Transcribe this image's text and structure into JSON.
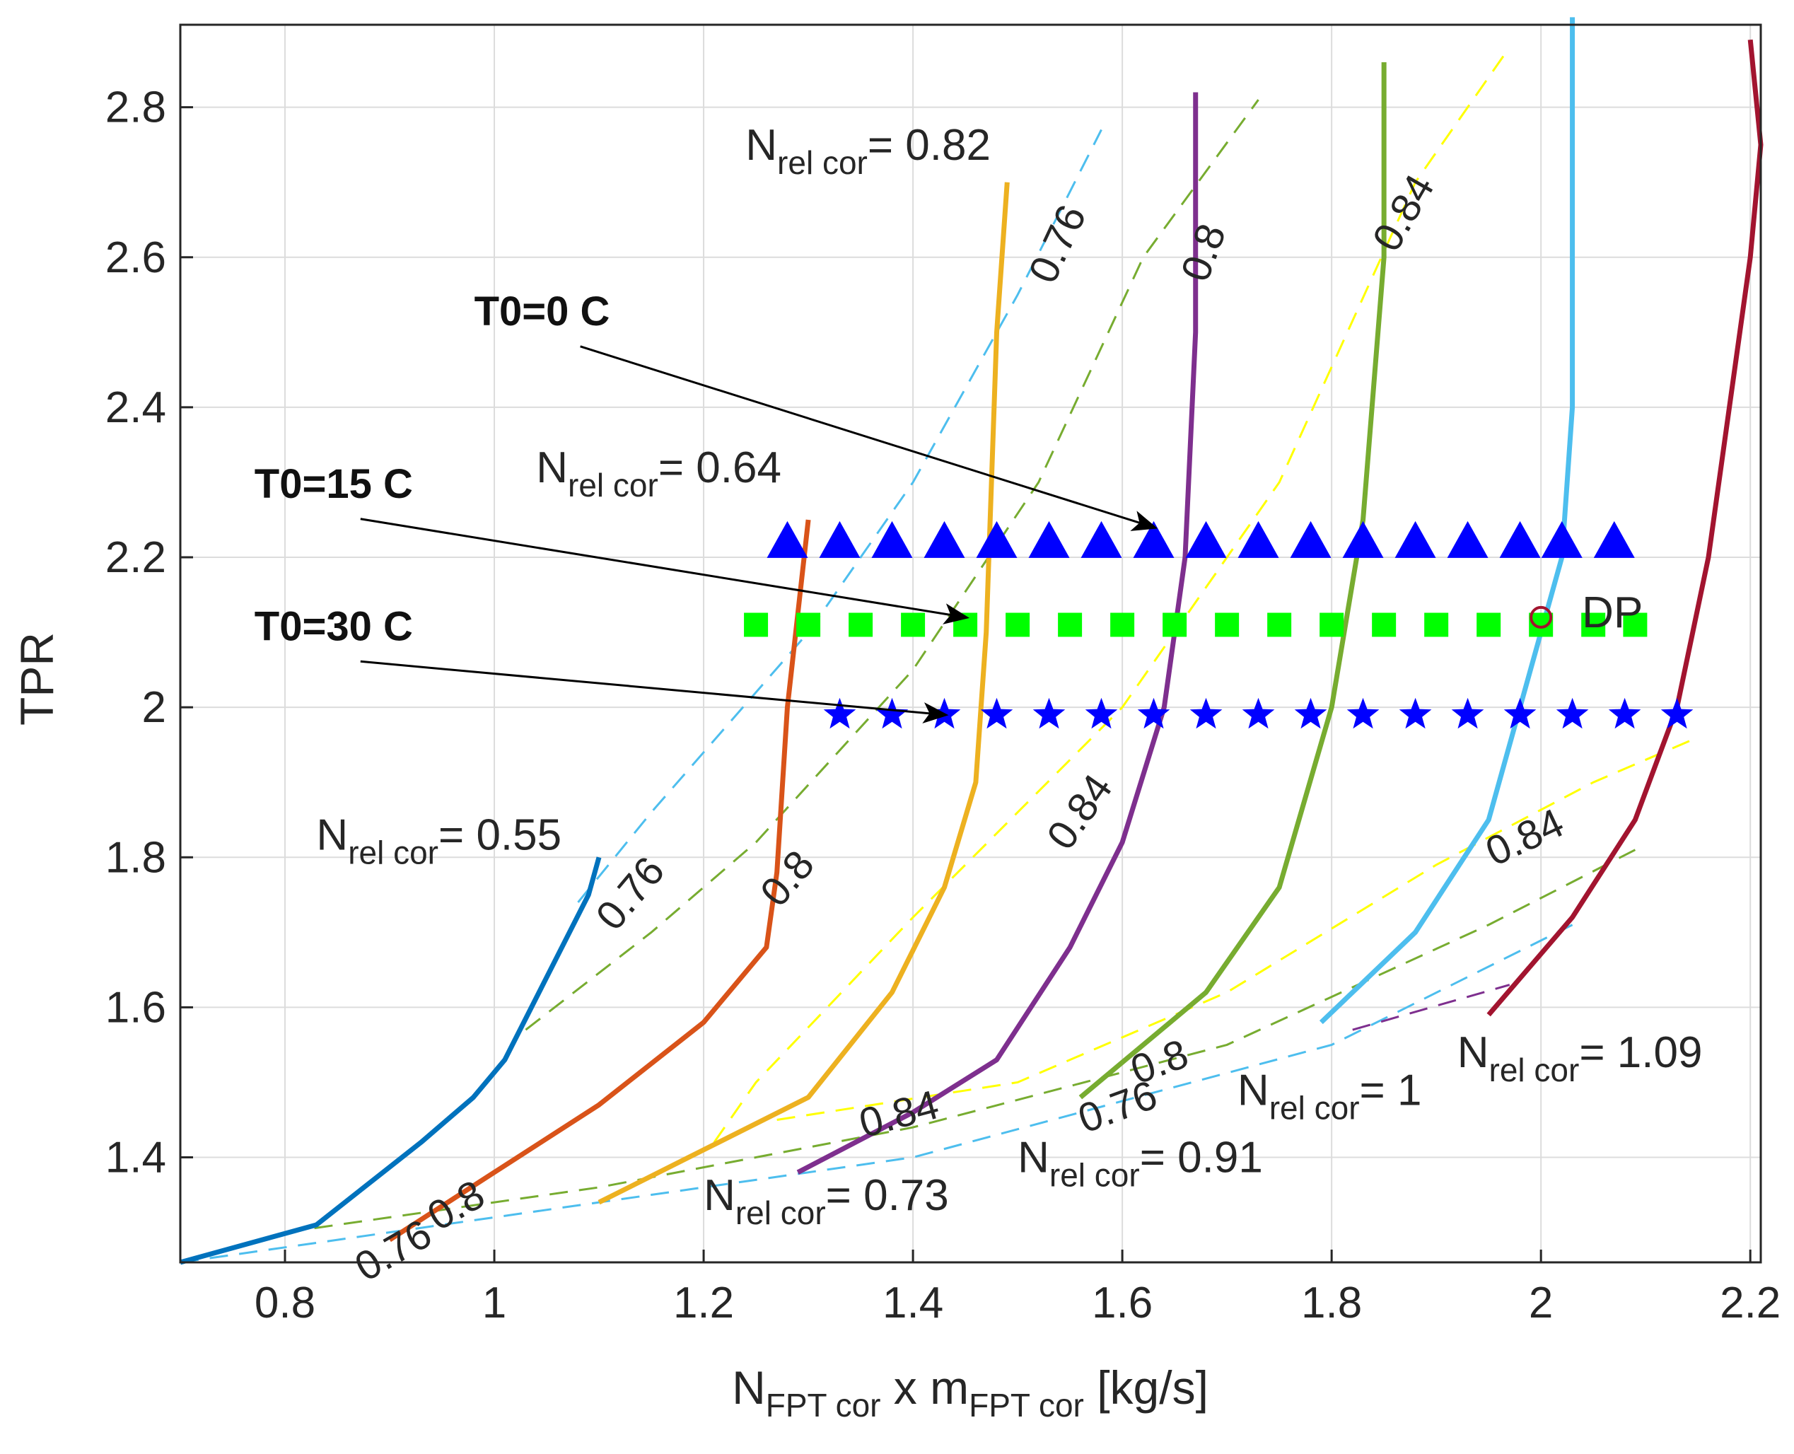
{
  "chart_data": {
    "type": "line",
    "title": "",
    "xlabel": {
      "main": "N",
      "sub1": "FPT cor",
      "mid": " x m",
      "sub2": "FPT cor",
      "tail": " [kg/s]"
    },
    "ylabel": "TPR",
    "xlim": [
      0.7,
      2.21
    ],
    "ylim": [
      1.26,
      2.91
    ],
    "grid": true,
    "xticks": [
      "0.8",
      "1",
      "1.2",
      "1.4",
      "1.6",
      "1.8",
      "2",
      "2.2"
    ],
    "yticks": [
      "1.4",
      "1.6",
      "1.8",
      "2",
      "2.2",
      "2.4",
      "2.6",
      "2.8"
    ],
    "speed_lines": [
      {
        "name": "0.55",
        "color": "#0072BD",
        "x": [
          0.7,
          0.83,
          0.93,
          0.98,
          1.01,
          1.05,
          1.09,
          1.1
        ],
        "y": [
          1.26,
          1.31,
          1.42,
          1.48,
          1.53,
          1.64,
          1.75,
          1.8
        ]
      },
      {
        "name": "0.64",
        "color": "#D95319",
        "x": [
          0.9,
          1.0,
          1.1,
          1.2,
          1.26,
          1.27,
          1.28,
          1.3
        ],
        "y": [
          1.29,
          1.38,
          1.47,
          1.58,
          1.68,
          1.78,
          2.0,
          2.25
        ]
      },
      {
        "name": "0.73",
        "color": "#EDB120",
        "x": [
          1.1,
          1.2,
          1.3,
          1.38,
          1.43,
          1.46,
          1.47,
          1.48,
          1.49
        ],
        "y": [
          1.34,
          1.41,
          1.48,
          1.62,
          1.76,
          1.9,
          2.1,
          2.5,
          2.7
        ]
      },
      {
        "name": "0.82",
        "color": "#7E2F8E",
        "x": [
          1.29,
          1.4,
          1.48,
          1.55,
          1.6,
          1.64,
          1.66,
          1.67,
          1.67
        ],
        "y": [
          1.38,
          1.46,
          1.53,
          1.68,
          1.82,
          2.0,
          2.2,
          2.5,
          2.82
        ]
      },
      {
        "name": "0.91",
        "color": "#77AC30",
        "x": [
          1.56,
          1.68,
          1.75,
          1.8,
          1.83,
          1.85,
          1.85
        ],
        "y": [
          1.48,
          1.62,
          1.76,
          2.0,
          2.25,
          2.6,
          2.86
        ]
      },
      {
        "name": "1",
        "color": "#4DBEEE",
        "x": [
          1.79,
          1.88,
          1.95,
          1.99,
          2.02,
          2.03,
          2.03
        ],
        "y": [
          1.58,
          1.7,
          1.85,
          2.05,
          2.2,
          2.4,
          2.92
        ]
      },
      {
        "name": "1.09",
        "color": "#A2142F",
        "x": [
          1.95,
          2.03,
          2.09,
          2.13,
          2.16,
          2.18,
          2.2,
          2.21,
          2.2
        ],
        "y": [
          1.59,
          1.72,
          1.85,
          2.0,
          2.2,
          2.4,
          2.6,
          2.75,
          2.89
        ]
      }
    ],
    "efficiency_lines": [
      {
        "label": "0.76",
        "color": "#4DBEEE",
        "x": [
          0.7,
          1.0,
          1.4,
          1.8,
          2.03
        ],
        "y": [
          1.26,
          1.32,
          1.4,
          1.55,
          1.71
        ]
      },
      {
        "label": "0.76",
        "color": "#4DBEEE",
        "x": [
          1.08,
          1.15,
          1.3,
          1.4,
          1.5,
          1.58
        ],
        "y": [
          1.74,
          1.86,
          2.1,
          2.3,
          2.55,
          2.77
        ]
      },
      {
        "label": "0.8",
        "color": "#77AC30",
        "x": [
          0.8,
          1.1,
          1.4,
          1.7,
          1.95,
          2.09
        ],
        "y": [
          1.3,
          1.36,
          1.44,
          1.55,
          1.71,
          1.81
        ]
      },
      {
        "label": "0.8",
        "color": "#77AC30",
        "x": [
          1.03,
          1.15,
          1.25,
          1.4,
          1.52,
          1.62,
          1.73
        ],
        "y": [
          1.57,
          1.7,
          1.82,
          2.05,
          2.3,
          2.6,
          2.81
        ]
      },
      {
        "label": "0.84",
        "color": "#FFFF00",
        "x": [
          1.27,
          1.5,
          1.7,
          1.9,
          2.05,
          2.15
        ],
        "y": [
          1.45,
          1.5,
          1.62,
          1.79,
          1.9,
          1.96
        ]
      },
      {
        "label": "0.84",
        "color": "#FFFF00",
        "x": [
          1.21,
          1.25,
          1.4,
          1.6,
          1.75,
          1.88,
          1.97
        ],
        "y": [
          1.42,
          1.5,
          1.72,
          2.0,
          2.3,
          2.7,
          2.88
        ]
      },
      {
        "label": "",
        "color": "#7E2F8E",
        "x": [
          1.82,
          1.97
        ],
        "y": [
          1.57,
          1.63
        ]
      }
    ],
    "operating_lines": [
      {
        "name": "T0=0 C",
        "marker": "triangle",
        "color": "#0000FF",
        "y": 2.22,
        "x": [
          1.28,
          1.33,
          1.38,
          1.43,
          1.48,
          1.53,
          1.58,
          1.63,
          1.68,
          1.73,
          1.78,
          1.83,
          1.88,
          1.93,
          1.98,
          2.02,
          2.07
        ]
      },
      {
        "name": "T0=15 C",
        "marker": "square",
        "color": "#00FF00",
        "y": 2.11,
        "x": [
          1.25,
          1.3,
          1.35,
          1.4,
          1.45,
          1.5,
          1.55,
          1.6,
          1.65,
          1.7,
          1.75,
          1.8,
          1.85,
          1.9,
          1.95,
          2.0,
          2.05,
          2.09
        ]
      },
      {
        "name": "T0=30 C",
        "marker": "star",
        "color": "#0000FF",
        "y": 1.99,
        "x": [
          1.33,
          1.38,
          1.43,
          1.48,
          1.53,
          1.58,
          1.63,
          1.68,
          1.73,
          1.78,
          1.83,
          1.88,
          1.93,
          1.98,
          2.03,
          2.08,
          2.13
        ]
      }
    ],
    "design_point": {
      "label": "DP",
      "x": 2.0,
      "y": 2.12
    },
    "annotations": {
      "speed_prefix": "N",
      "speed_sub": "rel cor",
      "speed_eq": "= ",
      "speed_labels": [
        {
          "value": "0.55",
          "x": 0.83,
          "y": 1.81
        },
        {
          "value": "0.64",
          "x": 1.04,
          "y": 2.3
        },
        {
          "value": "0.73",
          "x": 1.2,
          "y": 1.33
        },
        {
          "value": "0.82",
          "x": 1.24,
          "y": 2.73
        },
        {
          "value": "0.91",
          "x": 1.5,
          "y": 1.38
        },
        {
          "value": "1",
          "x": 1.71,
          "y": 1.47
        },
        {
          "value": "1.09",
          "x": 1.92,
          "y": 1.52
        }
      ],
      "efficiency_labels": [
        {
          "text": "0.76",
          "x": 0.91,
          "y": 1.26,
          "angle": -30
        },
        {
          "text": "0.8",
          "x": 0.97,
          "y": 1.32,
          "angle": -30
        },
        {
          "text": "0.76",
          "x": 1.14,
          "y": 1.74,
          "angle": -50
        },
        {
          "text": "0.8",
          "x": 1.29,
          "y": 1.76,
          "angle": -50
        },
        {
          "text": "0.84",
          "x": 1.57,
          "y": 1.85,
          "angle": -55
        },
        {
          "text": "0.76",
          "x": 1.55,
          "y": 2.61,
          "angle": -65
        },
        {
          "text": "0.8",
          "x": 1.69,
          "y": 2.6,
          "angle": -70
        },
        {
          "text": "0.84",
          "x": 1.88,
          "y": 2.65,
          "angle": -60
        },
        {
          "text": "0.84",
          "x": 1.39,
          "y": 1.44,
          "angle": -15
        },
        {
          "text": "0.76",
          "x": 1.6,
          "y": 1.45,
          "angle": -20
        },
        {
          "text": "0.8",
          "x": 1.64,
          "y": 1.51,
          "angle": -20
        },
        {
          "text": "0.84",
          "x": 1.99,
          "y": 1.81,
          "angle": -25
        }
      ],
      "op_labels": [
        {
          "text": "T0=0 C",
          "x": 0.92,
          "y": 2.5,
          "target_x": 1.63,
          "target_y": 2.24
        },
        {
          "text": "T0=15 C",
          "x": 0.71,
          "y": 2.27,
          "target_x": 1.45,
          "target_y": 2.12
        },
        {
          "text": "T0=30 C",
          "x": 0.71,
          "y": 2.08,
          "target_x": 1.43,
          "target_y": 1.99
        }
      ]
    }
  }
}
